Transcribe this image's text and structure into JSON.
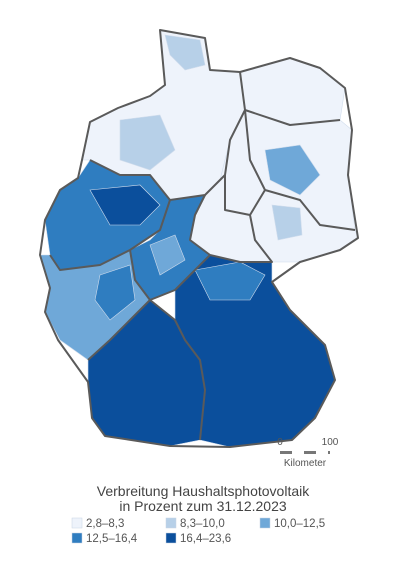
{
  "map": {
    "title": [
      "Verbreitung Haushaltsphotovoltaik",
      "in Prozent zum 31.12.2023"
    ],
    "legend": [
      {
        "label": "2,8–8,3",
        "color": "#eef3fb"
      },
      {
        "label": "8,3–10,0",
        "color": "#b7d0e8"
      },
      {
        "label": "10,0–12,5",
        "color": "#6fa8d8"
      },
      {
        "label": "12,5–16,4",
        "color": "#2f7dc0"
      },
      {
        "label": "16,4–23,6",
        "color": "#0b4f9c"
      }
    ],
    "scale": {
      "ticks": [
        "0",
        "100"
      ],
      "unit": "Kilometer"
    }
  }
}
